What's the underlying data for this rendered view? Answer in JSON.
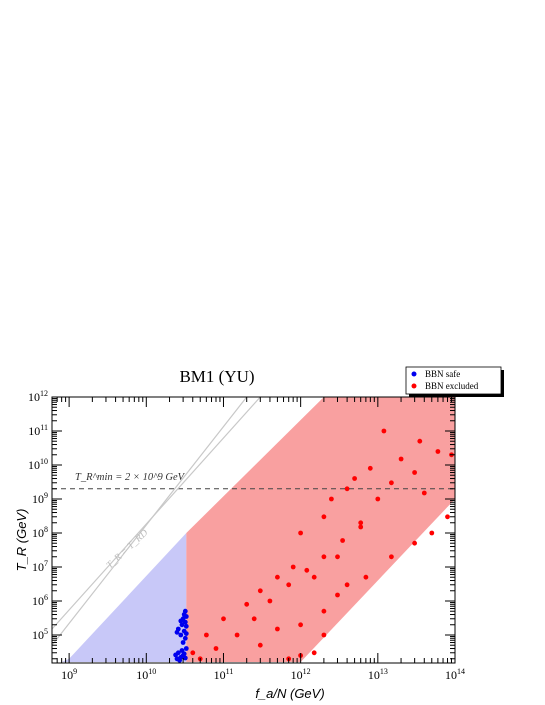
{
  "chart_data": {
    "type": "scatter",
    "title": "BM1 (YU)",
    "xlabel": "f_a/N (GeV)",
    "ylabel": "T_R (GeV)",
    "xscale": "log",
    "yscale": "log",
    "xlim": [
      600000000.0,
      100000000000000.0
    ],
    "ylim": [
      15000.0,
      1000000000000.0
    ],
    "grid": false,
    "legend_placement": "top-right, outside",
    "x_ticks": [
      1000000000.0,
      10000000000.0,
      100000000000.0,
      1000000000000.0,
      10000000000000.0,
      100000000000000.0
    ],
    "y_ticks": [
      100000.0,
      1000000.0,
      10000000.0,
      100000000.0,
      1000000000.0,
      10000000000.0,
      100000000000.0,
      1000000000000.0
    ],
    "x_tick_labels": [
      {
        "base": "10",
        "exp": "9"
      },
      {
        "base": "10",
        "exp": "10"
      },
      {
        "base": "10",
        "exp": "11"
      },
      {
        "base": "10",
        "exp": "12"
      },
      {
        "base": "10",
        "exp": "13"
      },
      {
        "base": "10",
        "exp": "14"
      }
    ],
    "y_tick_labels": [
      {
        "base": "10",
        "exp": "5"
      },
      {
        "base": "10",
        "exp": "6"
      },
      {
        "base": "10",
        "exp": "7"
      },
      {
        "base": "10",
        "exp": "8"
      },
      {
        "base": "10",
        "exp": "9"
      },
      {
        "base": "10",
        "exp": "10"
      },
      {
        "base": "10",
        "exp": "11"
      },
      {
        "base": "10",
        "exp": "12"
      }
    ],
    "annotations": {
      "tr_min_line": {
        "value": 2000000000.0,
        "style": "dashed",
        "label": "T_R^min = 2 × 10^9 GeV"
      },
      "diagonal_line": {
        "label": "T_R = T_RD"
      }
    },
    "regions": [
      {
        "name": "light-blue region",
        "color": "#c8c8f8"
      },
      {
        "name": "light-red region",
        "color": "#f9a0a0"
      }
    ],
    "series": [
      {
        "name": "BBN safe",
        "color": "#0000ee",
        "points": [
          [
            25000000000.0,
            20000.0
          ],
          [
            28000000000.0,
            22000.0
          ],
          [
            30000000000.0,
            25000.0
          ],
          [
            26000000000.0,
            30000.0
          ],
          [
            31000000000.0,
            28000.0
          ],
          [
            29000000000.0,
            35000.0
          ],
          [
            32000000000.0,
            21000.0
          ],
          [
            24000000000.0,
            26000.0
          ],
          [
            33000000000.0,
            40000.0
          ],
          [
            27000000000.0,
            18000.0
          ],
          [
            30000000000.0,
            60000.0
          ],
          [
            32000000000.0,
            80000.0
          ],
          [
            28000000000.0,
            100000.0
          ],
          [
            31000000000.0,
            130000.0
          ],
          [
            26000000000.0,
            150000.0
          ],
          [
            33000000000.0,
            180000.0
          ],
          [
            29000000000.0,
            200000.0
          ],
          [
            32000000000.0,
            240000.0
          ],
          [
            30000000000.0,
            300000.0
          ],
          [
            33000000000.0,
            350000.0
          ],
          [
            31000000000.0,
            400000.0
          ],
          [
            32000000000.0,
            500000.0
          ],
          [
            28000000000.0,
            260000.0
          ],
          [
            25000000000.0,
            120000.0
          ],
          [
            33000000000.0,
            110000.0
          ]
        ]
      },
      {
        "name": "BBN excluded",
        "color": "#ff0000",
        "points": [
          [
            12000000000000.0,
            100000000000.0
          ],
          [
            35000000000000.0,
            50000000000.0
          ],
          [
            60000000000000.0,
            25000000000.0
          ],
          [
            20000000000000.0,
            15000000000.0
          ],
          [
            8000000000000.0,
            8000000000.0
          ],
          [
            5000000000000.0,
            4000000000.0
          ],
          [
            15000000000000.0,
            3000000000.0
          ],
          [
            30000000000000.0,
            6000000000.0
          ],
          [
            90000000000000.0,
            20000000000.0
          ],
          [
            4000000000000.0,
            2000000000.0
          ],
          [
            2500000000000.0,
            1000000000.0
          ],
          [
            10000000000000.0,
            1000000000.0
          ],
          [
            40000000000000.0,
            1500000000.0
          ],
          [
            80000000000000.0,
            300000000.0
          ],
          [
            50000000000000.0,
            100000000.0
          ],
          [
            30000000000000.0,
            50000000.0
          ],
          [
            15000000000000.0,
            20000000.0
          ],
          [
            2000000000000.0,
            300000000.0
          ],
          [
            1000000000000.0,
            100000000.0
          ],
          [
            6000000000000.0,
            150000000.0
          ],
          [
            3000000000000.0,
            20000000.0
          ],
          [
            7000000000000.0,
            5000000.0
          ],
          [
            1500000000000.0,
            5000000.0
          ],
          [
            800000000000.0,
            10000000.0
          ],
          [
            500000000000.0,
            5000000.0
          ],
          [
            300000000000.0,
            2000000.0
          ],
          [
            200000000000.0,
            800000.0
          ],
          [
            100000000000.0,
            300000.0
          ],
          [
            60000000000.0,
            100000.0
          ],
          [
            40000000000.0,
            30000.0
          ],
          [
            50000000000.0,
            20000.0
          ],
          [
            80000000000.0,
            40000.0
          ],
          [
            150000000000.0,
            100000.0
          ],
          [
            250000000000.0,
            300000.0
          ],
          [
            400000000000.0,
            1000000.0
          ],
          [
            700000000000.0,
            3000000.0
          ],
          [
            1200000000000.0,
            8000000.0
          ],
          [
            2000000000000.0,
            20000000.0
          ],
          [
            3500000000000.0,
            60000000.0
          ],
          [
            6000000000000.0,
            200000000.0
          ],
          [
            1000000000000.0,
            200000.0
          ],
          [
            2000000000000.0,
            500000.0
          ],
          [
            3000000000000.0,
            1500000.0
          ],
          [
            500000000000.0,
            150000.0
          ],
          [
            300000000000.0,
            50000.0
          ],
          [
            2000000000000.0,
            100000.0
          ],
          [
            1500000000000.0,
            30000.0
          ],
          [
            1000000000000.0,
            25000.0
          ],
          [
            700000000000.0,
            20000.0
          ],
          [
            4000000000000.0,
            3000000.0
          ]
        ]
      }
    ]
  }
}
